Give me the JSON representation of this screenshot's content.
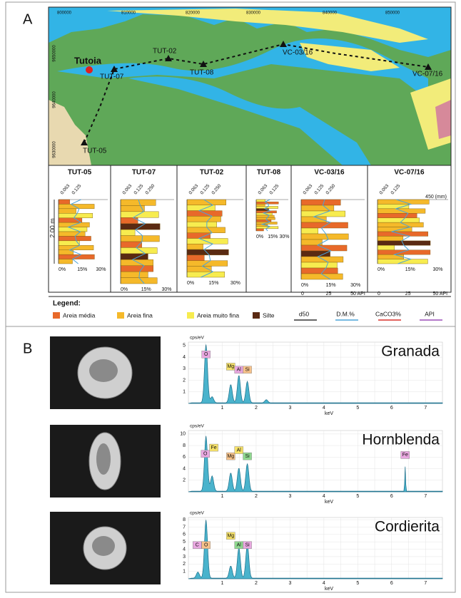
{
  "panel_a": {
    "label": "A",
    "map": {
      "eastings": [
        "800000",
        "810000",
        "820000",
        "830000",
        "840000",
        "850000"
      ],
      "northings": [
        "9650000",
        "9640000",
        "9630000"
      ],
      "town": "Tutoia",
      "sites": [
        "TUT-07",
        "TUT-02",
        "TUT-08",
        "VC-03/16",
        "VC-07/16",
        "TUT-05"
      ]
    },
    "logs": [
      {
        "title": "TUT-05",
        "ticks": [
          "0.063",
          "0.125"
        ],
        "scale": [
          "0%",
          "15%",
          "30%"
        ],
        "depth": "2.00 m"
      },
      {
        "title": "TUT-07",
        "ticks": [
          "0.063",
          "0.125",
          "0.250"
        ],
        "scale": [
          "0%",
          "15%",
          "30%"
        ]
      },
      {
        "title": "TUT-02",
        "ticks": [
          "0.063",
          "0.125",
          "0.250"
        ],
        "scale": [
          "0%",
          "15%",
          "30%"
        ]
      },
      {
        "title": "TUT-08",
        "ticks": [
          "0.063",
          "0.125"
        ],
        "scale": [
          "0%",
          "15%",
          "30%"
        ]
      },
      {
        "title": "VC-03/16",
        "ticks": [
          "0.063",
          "0.125",
          "0.250"
        ],
        "scale": [
          "0%",
          "15%",
          "30%"
        ],
        "api": [
          "0",
          "25",
          "50 API"
        ]
      },
      {
        "title": "VC-07/16",
        "ticks": [
          "0.063",
          "0.125"
        ],
        "scale": [
          "0%",
          "15%",
          "30%"
        ],
        "api": [
          "0",
          "25",
          "50 API"
        ],
        "depth_mark": "450 (mm)"
      }
    ],
    "legend": {
      "title": "Legend:",
      "fills": [
        {
          "label": "Areia média",
          "color": "#e8692a"
        },
        {
          "label": "Areia fina",
          "color": "#f5b92a"
        },
        {
          "label": "Areia muito fina",
          "color": "#f7ec4f"
        },
        {
          "label": "Silte",
          "color": "#5a2a12"
        }
      ],
      "lines": [
        {
          "label": "d50",
          "color": "#333333"
        },
        {
          "label": "D.M.%",
          "color": "#4aa3d8"
        },
        {
          "label": "CaCO3%",
          "color": "#d8312a"
        },
        {
          "label": "API",
          "color": "#9b4fb8"
        }
      ]
    }
  },
  "panel_b": {
    "label": "B",
    "spectra": [
      {
        "title": "Granada",
        "y_unit": "cps/eV",
        "x_unit": "keV",
        "yticks": [
          "1",
          "2",
          "3",
          "4",
          "5"
        ],
        "xticks": [
          "1",
          "2",
          "3",
          "4",
          "5",
          "6",
          "7"
        ],
        "elements": [
          "O",
          "Mg",
          "Al",
          "Si"
        ]
      },
      {
        "title": "Hornblenda",
        "y_unit": "cps/eV",
        "x_unit": "keV",
        "yticks": [
          "2",
          "4",
          "6",
          "8",
          "10"
        ],
        "xticks": [
          "1",
          "2",
          "3",
          "4",
          "5",
          "6",
          "7"
        ],
        "elements": [
          "Fe",
          "O",
          "Mg",
          "Al",
          "Si",
          "Fe"
        ]
      },
      {
        "title": "Cordierita",
        "y_unit": "cps/eV",
        "x_unit": "keV",
        "yticks": [
          "1",
          "2",
          "3",
          "4",
          "5",
          "6",
          "7",
          "8"
        ],
        "xticks": [
          "1",
          "2",
          "3",
          "4",
          "5",
          "6",
          "7"
        ],
        "elements": [
          "C",
          "O",
          "Mg",
          "Al",
          "Si"
        ]
      }
    ]
  }
}
